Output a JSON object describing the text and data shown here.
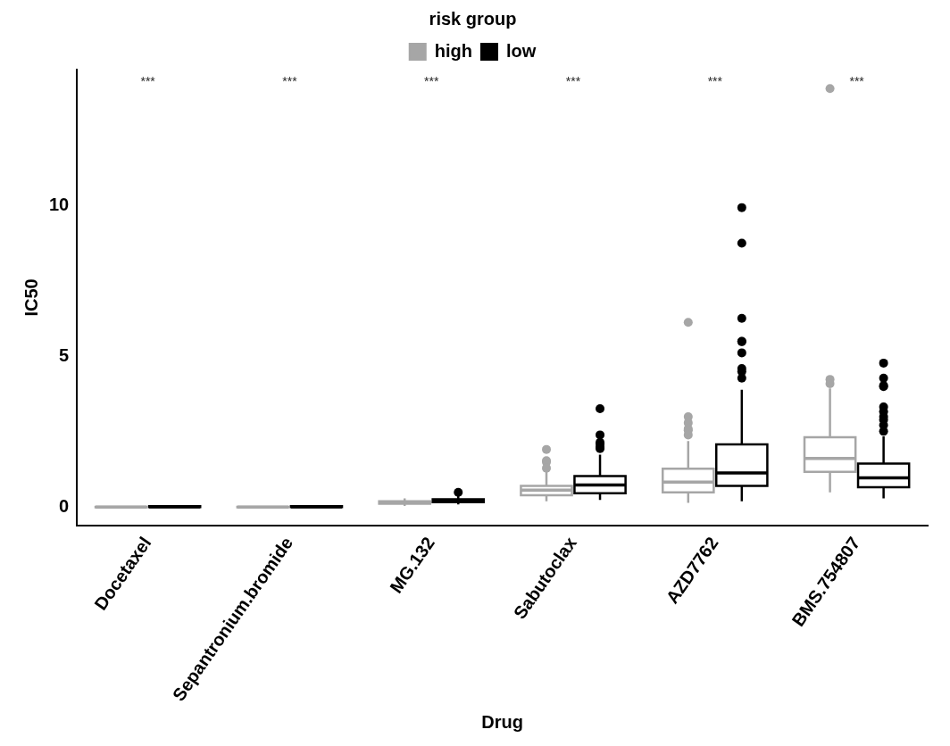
{
  "chart_data": {
    "type": "box",
    "xlabel": "Drug",
    "ylabel": "IC50",
    "legend_title": "risk group",
    "legend": "top",
    "grid": false,
    "marker": "circle",
    "categories": [
      "Docetaxel",
      "Sepantronium.bromide",
      "MG.132",
      "Sabutoclax",
      "AZD7762",
      "BMS.754807"
    ],
    "ylim": [
      -0.6,
      14.5
    ],
    "yticks": [
      0,
      5,
      10
    ],
    "series": [
      {
        "name": "high",
        "color": "#a6a6a6",
        "boxes": [
          {
            "low": 0,
            "q1": 0.005,
            "median": 0.01,
            "q3": 0.02,
            "high": 0.04
          },
          {
            "low": 0,
            "q1": 0.005,
            "median": 0.01,
            "q3": 0.02,
            "high": 0.04
          },
          {
            "low": 0.05,
            "q1": 0.12,
            "median": 0.16,
            "q3": 0.2,
            "high": 0.3
          },
          {
            "low": 0.2,
            "q1": 0.4,
            "median": 0.57,
            "q3": 0.71,
            "high": 1.2,
            "outliers": [
              1.92,
              1.55,
              1.5,
              1.3
            ]
          },
          {
            "low": 0.15,
            "q1": 0.5,
            "median": 0.84,
            "q3": 1.28,
            "high": 2.2,
            "outliers": [
              6.13,
              3.0,
              2.8,
              2.6,
              2.55,
              2.4
            ]
          },
          {
            "low": 0.5,
            "q1": 1.18,
            "median": 1.62,
            "q3": 2.32,
            "high": 3.94,
            "outliers": [
              13.87,
              4.24,
              4.1
            ]
          }
        ]
      },
      {
        "name": "low",
        "color": "#000000",
        "boxes": [
          {
            "low": 0,
            "q1": 0.01,
            "median": 0.02,
            "q3": 0.04,
            "high": 0.08
          },
          {
            "low": 0,
            "q1": 0.01,
            "median": 0.02,
            "q3": 0.04,
            "high": 0.08
          },
          {
            "low": 0.1,
            "q1": 0.17,
            "median": 0.22,
            "q3": 0.27,
            "high": 0.4,
            "outliers": [
              0.5
            ]
          },
          {
            "low": 0.25,
            "q1": 0.47,
            "median": 0.74,
            "q3": 1.04,
            "high": 1.75,
            "outliers": [
              3.27,
              2.4,
              2.15,
              2.1,
              2.0,
              1.95
            ]
          },
          {
            "low": 0.2,
            "q1": 0.71,
            "median": 1.14,
            "q3": 2.09,
            "high": 3.9,
            "outliers": [
              9.93,
              8.75,
              6.26,
              5.5,
              5.49,
              5.12,
              4.6,
              4.5,
              4.28
            ]
          },
          {
            "low": 0.3,
            "q1": 0.67,
            "median": 0.98,
            "q3": 1.45,
            "high": 2.35,
            "outliers": [
              4.78,
              4.28,
              4.04,
              4.0,
              3.33,
              3.17,
              3.0,
              2.9,
              2.72,
              2.52
            ]
          }
        ]
      }
    ],
    "annotations": [
      "***",
      "***",
      "***",
      "***",
      "***",
      "***"
    ]
  }
}
